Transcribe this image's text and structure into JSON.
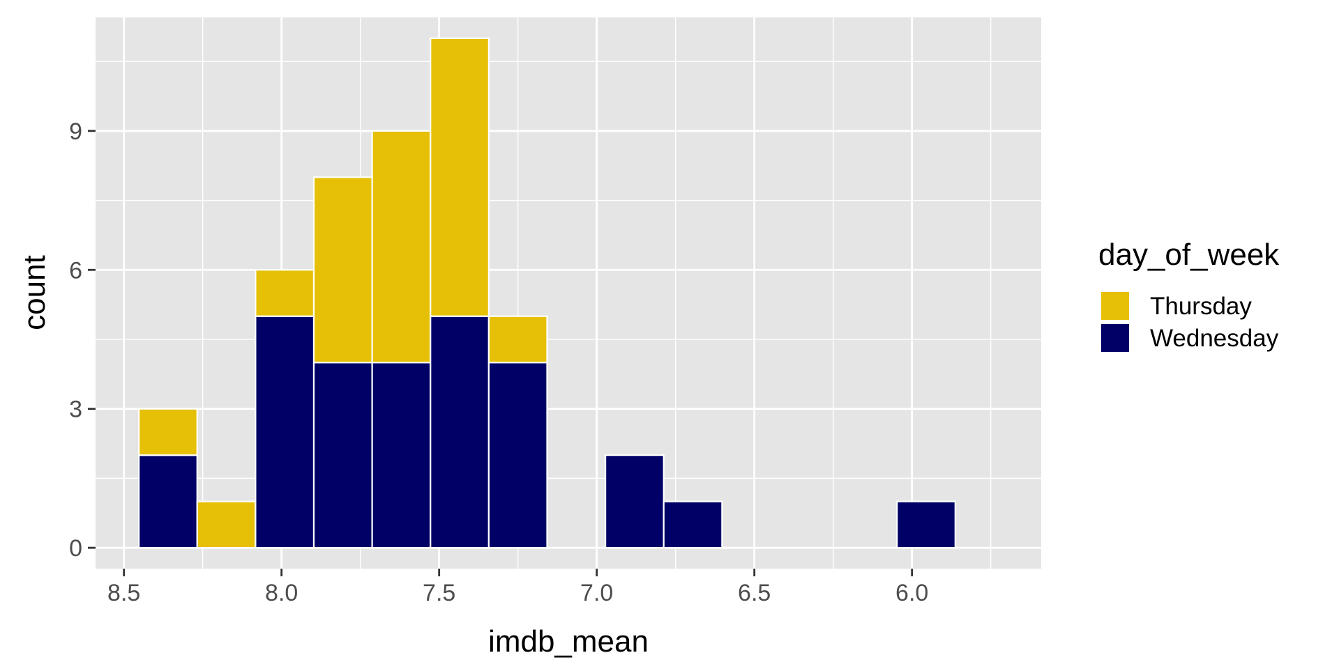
{
  "chart_data": {
    "type": "bar",
    "subtype": "stacked-histogram",
    "xlabel": "imdb_mean",
    "ylabel": "count",
    "x_reversed": true,
    "xlim": [
      8.59,
      5.59
    ],
    "ylim": [
      -0.45,
      11.45
    ],
    "x_major_ticks": [
      8.5,
      8.0,
      7.5,
      7.0,
      6.5,
      6.0
    ],
    "x_tick_labels": [
      "8.5",
      "8.0",
      "7.5",
      "7.0",
      "6.5",
      "6.0"
    ],
    "x_minor_ticks": [
      8.25,
      7.75,
      7.25,
      6.75,
      6.25,
      5.75
    ],
    "y_major_ticks": [
      0,
      3,
      6,
      9
    ],
    "y_tick_labels": [
      "0",
      "3",
      "6",
      "9"
    ],
    "y_minor_ticks": [
      1.5,
      4.5,
      7.5,
      10.5
    ],
    "bin_width": 0.185,
    "bin_centers": [
      8.36,
      8.175,
      7.99,
      7.805,
      7.62,
      7.435,
      7.25,
      6.88,
      6.695,
      5.955
    ],
    "series": [
      {
        "name": "Wednesday",
        "color": "#000066",
        "values": [
          2,
          0,
          5,
          4,
          4,
          5,
          4,
          2,
          1,
          1
        ]
      },
      {
        "name": "Thursday",
        "color": "#E6C007",
        "values": [
          1,
          1,
          1,
          4,
          5,
          6,
          1,
          0,
          0,
          0
        ]
      }
    ],
    "grid": true,
    "legend": {
      "title": "day_of_week",
      "placement": "right",
      "entries": [
        {
          "label": "Thursday",
          "color": "#E6C007"
        },
        {
          "label": "Wednesday",
          "color": "#000066"
        }
      ]
    },
    "colors": {
      "panel": "#E5E5E5",
      "grid": "#FFFFFF",
      "bar_outline": "#FFFFFF"
    }
  }
}
